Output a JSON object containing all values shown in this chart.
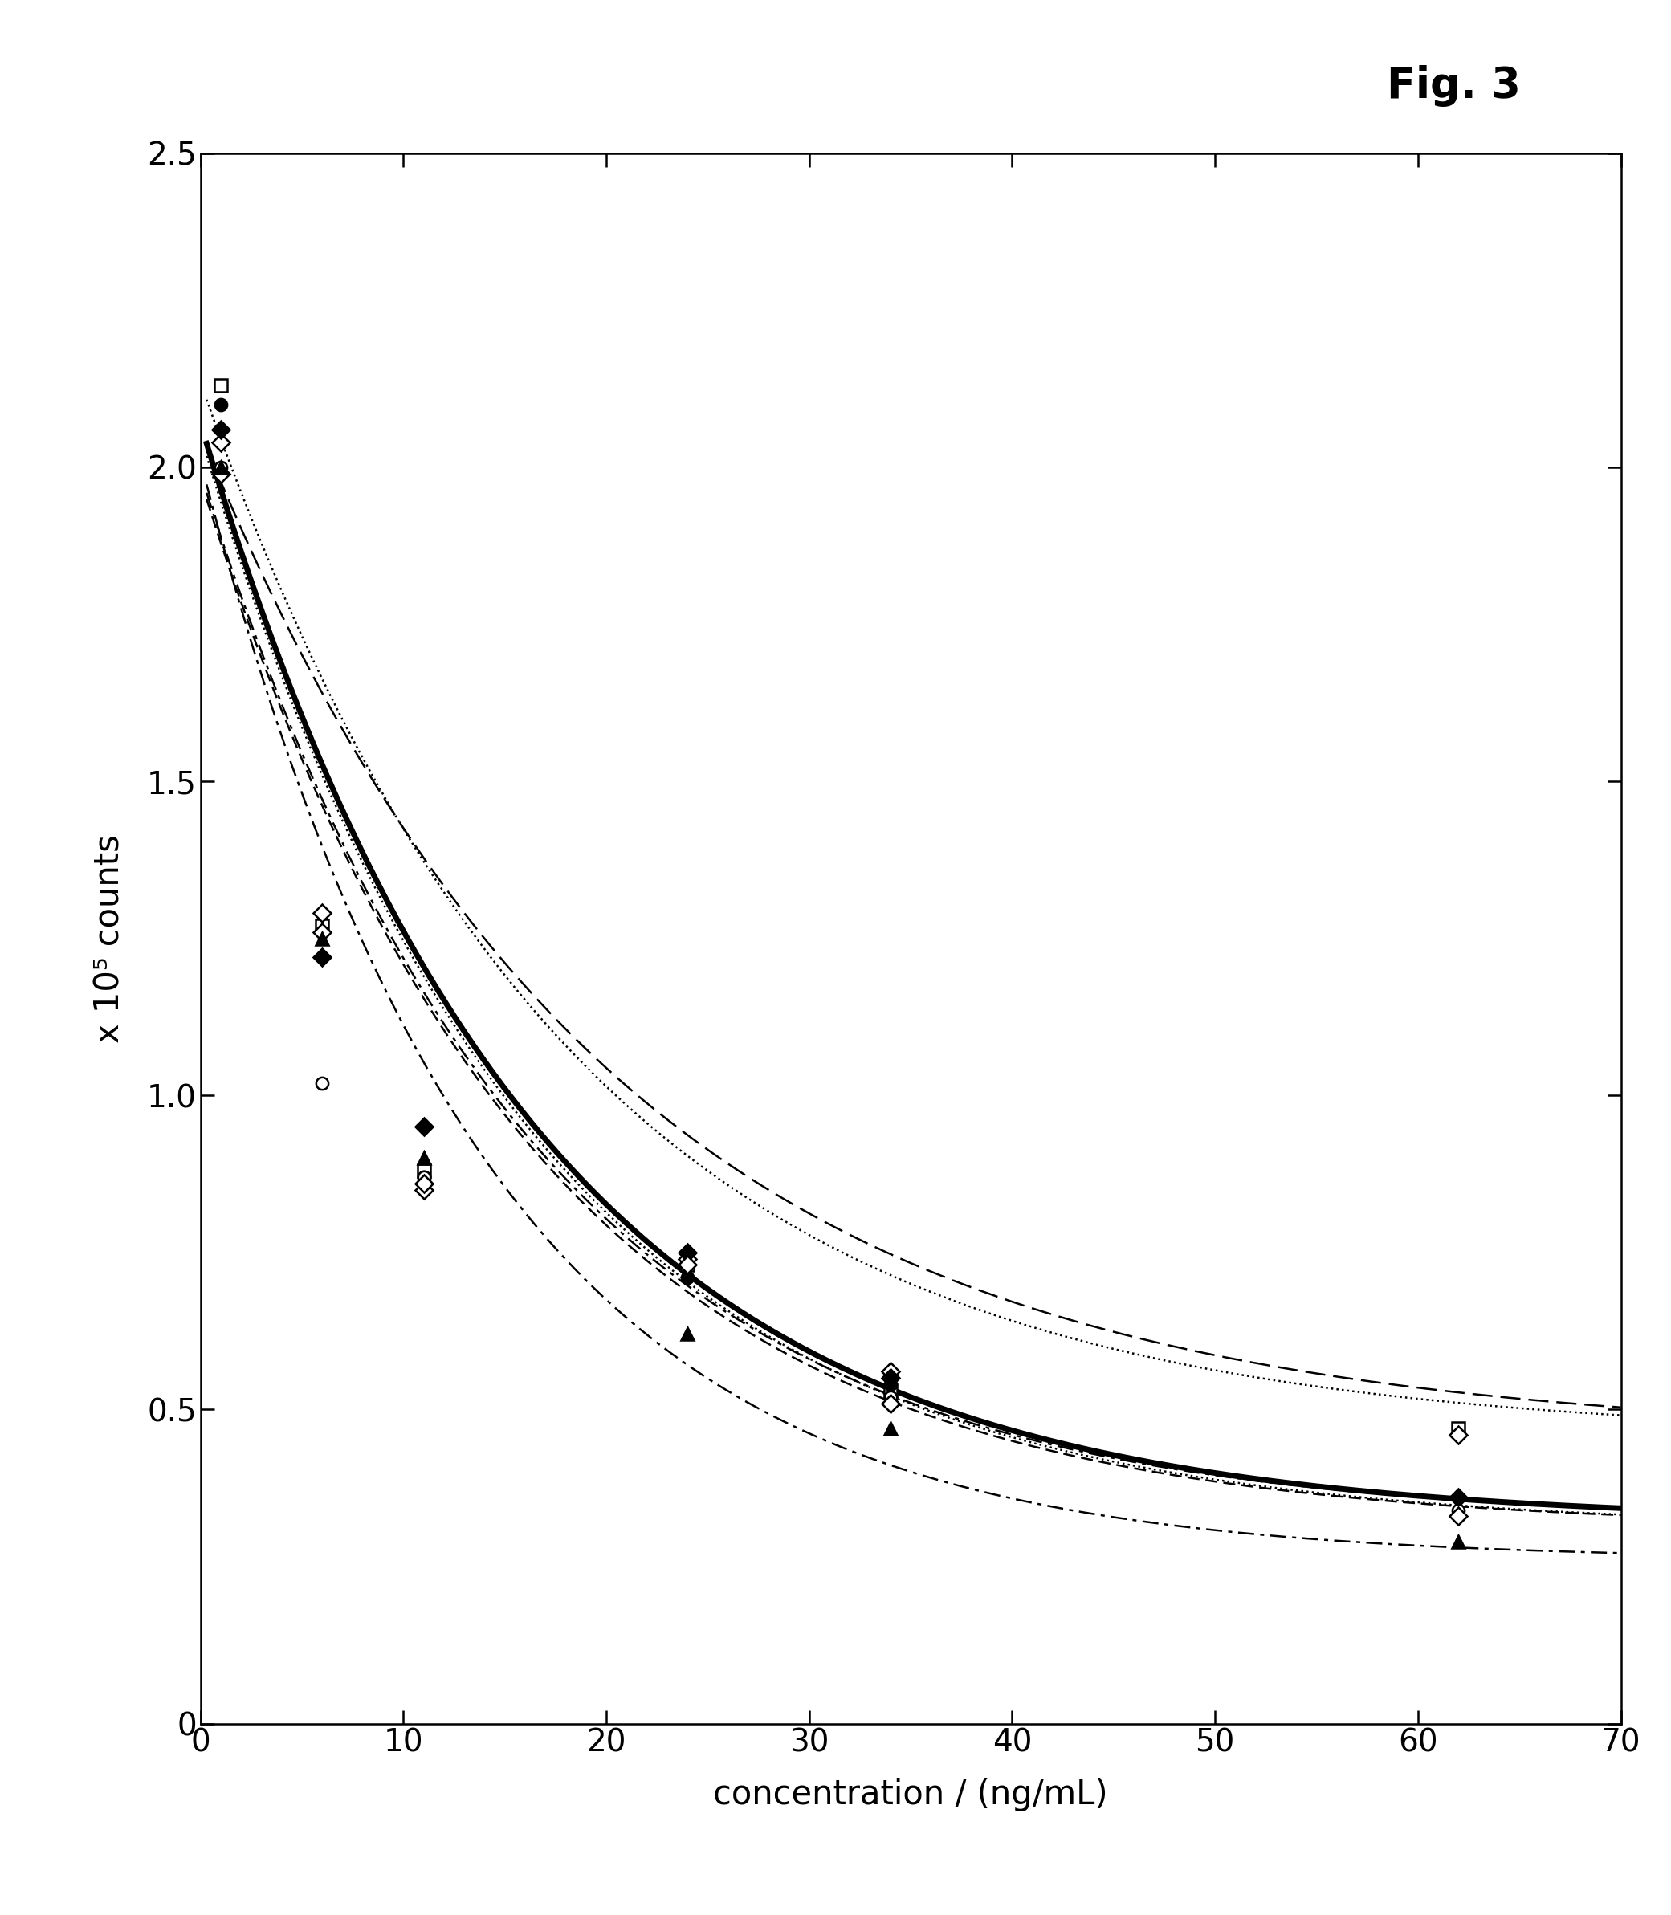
{
  "title": "Fig. 3",
  "xlabel": "concentration / (ng/mL)",
  "ylabel": "x 10⁵ counts",
  "xlim": [
    0,
    70
  ],
  "ylim": [
    0,
    2.5
  ],
  "xticks": [
    0,
    10,
    20,
    30,
    40,
    50,
    60,
    70
  ],
  "yticks": [
    0,
    0.5,
    1.0,
    1.5,
    2.0,
    2.5
  ],
  "series": [
    {
      "name": "open_square_dotted",
      "x": [
        1,
        6,
        11,
        24,
        34,
        62
      ],
      "y": [
        2.13,
        1.27,
        0.88,
        0.73,
        0.53,
        0.47
      ],
      "marker": "s",
      "mfc": "white",
      "mec": "black",
      "mew": 1.8,
      "ms": 11,
      "fit_ls": "dotted",
      "fit_lw": 1.8,
      "fit_a": 1.68,
      "fit_b": 0.055,
      "fit_c": 0.455
    },
    {
      "name": "filled_circle_dotted",
      "x": [
        1,
        6,
        11,
        24,
        34,
        62
      ],
      "y": [
        2.1,
        1.26,
        0.87,
        0.71,
        0.54,
        0.33
      ],
      "marker": "o",
      "mfc": "black",
      "mec": "black",
      "mew": 1.8,
      "ms": 11,
      "fit_ls": "dotted",
      "fit_lw": 1.8,
      "fit_a": 1.74,
      "fit_b": 0.062,
      "fit_c": 0.31
    },
    {
      "name": "open_diamond_longdash",
      "x": [
        1,
        6,
        11,
        24,
        34,
        62
      ],
      "y": [
        2.04,
        1.29,
        0.85,
        0.74,
        0.56,
        0.46
      ],
      "marker": "D",
      "mfc": "white",
      "mec": "black",
      "mew": 1.8,
      "ms": 11,
      "fit_ls": [
        0,
        [
          10,
          4
        ]
      ],
      "fit_lw": 1.8,
      "fit_a": 1.6,
      "fit_b": 0.05,
      "fit_c": 0.455
    },
    {
      "name": "filled_diamond_bold_solid",
      "x": [
        1,
        6,
        11,
        24,
        34,
        62
      ],
      "y": [
        2.06,
        1.22,
        0.95,
        0.75,
        0.55,
        0.36
      ],
      "marker": "D",
      "mfc": "black",
      "mec": "black",
      "mew": 1.8,
      "ms": 11,
      "fit_ls": "solid",
      "fit_lw": 5.0,
      "fit_a": 1.75,
      "fit_b": 0.062,
      "fit_c": 0.32
    },
    {
      "name": "open_circle_dashdot",
      "x": [
        1,
        6,
        11,
        24,
        34,
        62
      ],
      "y": [
        2.0,
        1.02,
        0.87,
        0.73,
        0.52,
        0.34
      ],
      "marker": "o",
      "mfc": "white",
      "mec": "black",
      "mew": 1.8,
      "ms": 11,
      "fit_ls": [
        0,
        [
          8,
          3,
          2,
          3
        ]
      ],
      "fit_lw": 1.8,
      "fit_a": 1.67,
      "fit_b": 0.062,
      "fit_c": 0.32
    },
    {
      "name": "open_diamond_dash",
      "x": [
        1,
        6,
        11,
        24,
        34,
        62
      ],
      "y": [
        1.99,
        1.26,
        0.86,
        0.73,
        0.51,
        0.33
      ],
      "marker": "D",
      "mfc": "white",
      "mec": "black",
      "mew": 1.8,
      "ms": 11,
      "fit_ls": [
        0,
        [
          6,
          3
        ]
      ],
      "fit_lw": 1.8,
      "fit_a": 1.67,
      "fit_b": 0.062,
      "fit_c": 0.31
    },
    {
      "name": "filled_triangle_dashdot",
      "x": [
        1,
        6,
        11,
        24,
        34,
        62
      ],
      "y": [
        2.0,
        1.25,
        0.9,
        0.62,
        0.47,
        0.29
      ],
      "marker": "^",
      "mfc": "black",
      "mec": "black",
      "mew": 1.8,
      "ms": 11,
      "fit_ls": [
        0,
        [
          8,
          3,
          2,
          3
        ]
      ],
      "fit_lw": 1.8,
      "fit_a": 1.75,
      "fit_b": 0.072,
      "fit_c": 0.26
    }
  ]
}
